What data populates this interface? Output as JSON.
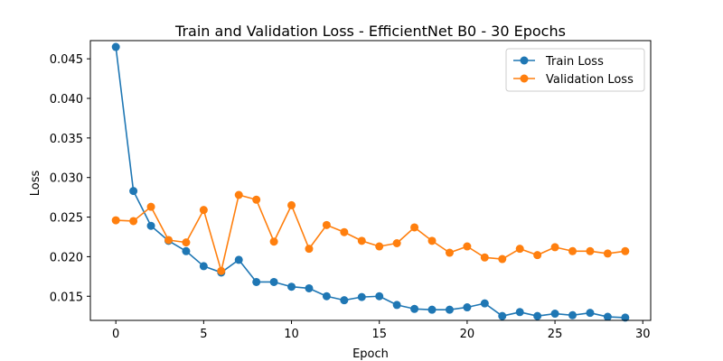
{
  "chart_data": {
    "type": "line",
    "title": "Train and Validation Loss - EfficientNet B0 - 30 Epochs",
    "xlabel": "Epoch",
    "ylabel": "Loss",
    "xlim": [
      -1.45,
      30.45
    ],
    "ylim": [
      0.01195,
      0.0473
    ],
    "x_ticks": [
      0,
      5,
      10,
      15,
      20,
      25,
      30
    ],
    "x_tick_labels": [
      "0",
      "5",
      "10",
      "15",
      "20",
      "25",
      "30"
    ],
    "y_ticks": [
      0.015,
      0.02,
      0.025,
      0.03,
      0.035,
      0.04,
      0.045
    ],
    "y_tick_labels": [
      "0.015",
      "0.020",
      "0.025",
      "0.030",
      "0.035",
      "0.040",
      "0.045"
    ],
    "grid": false,
    "legend_position": "upper right",
    "x": [
      0,
      1,
      2,
      3,
      4,
      5,
      6,
      7,
      8,
      9,
      10,
      11,
      12,
      13,
      14,
      15,
      16,
      17,
      18,
      19,
      20,
      21,
      22,
      23,
      24,
      25,
      26,
      27,
      28,
      29
    ],
    "series": [
      {
        "name": "Train Loss",
        "color": "#1f77b4",
        "values": [
          0.0465,
          0.0283,
          0.0239,
          0.022,
          0.0207,
          0.0188,
          0.018,
          0.0196,
          0.0168,
          0.0168,
          0.0162,
          0.016,
          0.015,
          0.0145,
          0.0149,
          0.015,
          0.0139,
          0.0134,
          0.0133,
          0.0133,
          0.0136,
          0.0141,
          0.0125,
          0.013,
          0.0125,
          0.0128,
          0.0126,
          0.0129,
          0.0124,
          0.0123
        ]
      },
      {
        "name": "Validation Loss",
        "color": "#ff7f0e",
        "values": [
          0.0246,
          0.0245,
          0.0263,
          0.0221,
          0.0218,
          0.0259,
          0.0182,
          0.0278,
          0.0272,
          0.0219,
          0.0265,
          0.021,
          0.024,
          0.0231,
          0.022,
          0.0213,
          0.0217,
          0.0237,
          0.022,
          0.0205,
          0.0213,
          0.0199,
          0.0197,
          0.021,
          0.0202,
          0.0212,
          0.0207,
          0.0207,
          0.0204,
          0.0207
        ]
      }
    ]
  }
}
